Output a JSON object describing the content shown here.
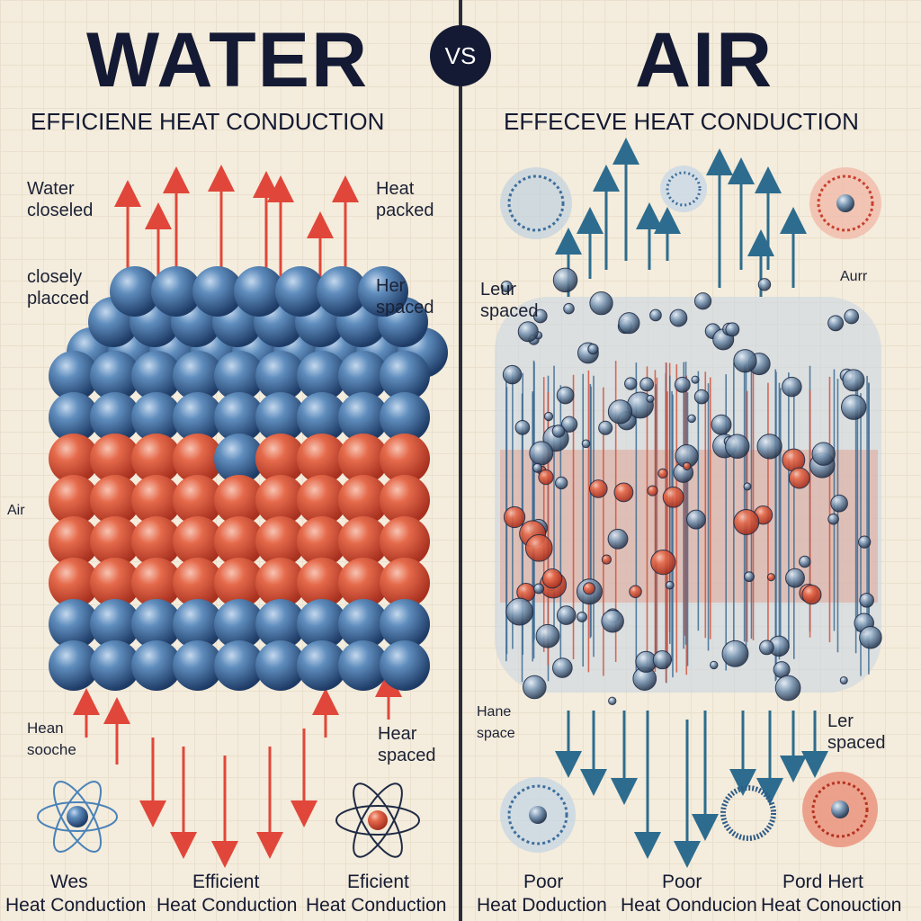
{
  "header": {
    "left_title": "WATER",
    "vs": "VS",
    "right_title": "AIR",
    "left_subtitle": "EFFICIENE HEAT CONDUCTION",
    "right_subtitle": "EFFECEVE HEAT CONDUCTION"
  },
  "left_labels": {
    "water_closeled": [
      "Water",
      "closeled"
    ],
    "closely_placed": [
      "closely",
      "placced"
    ],
    "heat_packed": [
      "Heat",
      "packed"
    ],
    "her_spaced": [
      "Her",
      "spaced"
    ],
    "air": "Air",
    "hean_sooche": [
      "Hean",
      "sooche"
    ],
    "hear_spaced": [
      "Hear",
      "spaced"
    ]
  },
  "right_labels": {
    "leur_spaced": [
      "Leur",
      "spaced"
    ],
    "aurr": "Aurr",
    "hane_space": [
      "Hane",
      "space"
    ],
    "ler_spaced": [
      "Ler",
      "spaced"
    ]
  },
  "bottom_captions": {
    "left": [
      {
        "top": "Wes",
        "bottom": "Heat Conduction"
      },
      {
        "top": "Efficient",
        "bottom": "Heat Conduction"
      },
      {
        "top": "Eficient",
        "bottom": "Heat Conduction"
      }
    ],
    "right": [
      {
        "top": "Poor",
        "bottom": "Heat Doduction"
      },
      {
        "top": "Poor",
        "bottom": "Heat Oonducion"
      },
      {
        "top": "Pord Hert",
        "bottom": "Heat Conouction"
      }
    ]
  },
  "colors": {
    "blue_molecule": "#2f5f93",
    "red_molecule": "#d9533c",
    "red_arrow": "#e0473a",
    "blue_arrow": "#2d6c8e",
    "title": "#141a33"
  }
}
